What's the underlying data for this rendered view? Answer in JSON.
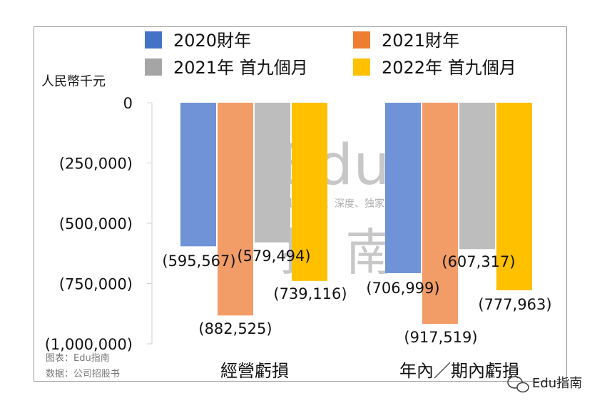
{
  "chart_data": {
    "type": "bar",
    "unit_label": "人民幣千元",
    "categories": [
      "經營虧損",
      "年內／期內虧損"
    ],
    "series": [
      {
        "name": "2020財年",
        "color": "#6f93d6",
        "values": [
          -595567,
          -706999
        ],
        "labels": [
          "(595,567)",
          "(706,999)"
        ]
      },
      {
        "name": "2021財年",
        "color": "#f29c68",
        "values": [
          -882525,
          -917519
        ],
        "labels": [
          "(882,525)",
          "(917,519)"
        ]
      },
      {
        "name": "2021年 首九個月",
        "color": "#bdbdbd",
        "values": [
          -579494,
          -607317
        ],
        "labels": [
          "(579,494)",
          "(607,317)"
        ]
      },
      {
        "name": "2022年 首九個月",
        "color": "#ffc000",
        "values": [
          -739116,
          -777963
        ],
        "labels": [
          "(739,116)",
          "(777,963)"
        ]
      }
    ],
    "legend_colors": [
      "#4472c4",
      "#ed7d31",
      "#a5a5a5",
      "#ffc000"
    ],
    "ylim": [
      -1000000,
      0
    ],
    "yticks": [
      0,
      -250000,
      -500000,
      -750000,
      -1000000
    ],
    "ytick_labels": [
      "0",
      "(250,000)",
      "(500,000)",
      "(750,000)",
      "(1,000,000)"
    ],
    "legend_position": "top",
    "grid": false
  },
  "source": {
    "line1": "图表：Edu指南",
    "line2": "数据：公司招股书"
  },
  "watermark": {
    "title": "Edu",
    "title_cn": "指  南",
    "tagline": "教育行业，前沿、深度、独家"
  },
  "brand": {
    "name": "Edu指南",
    "icon": "wechat-icon"
  }
}
